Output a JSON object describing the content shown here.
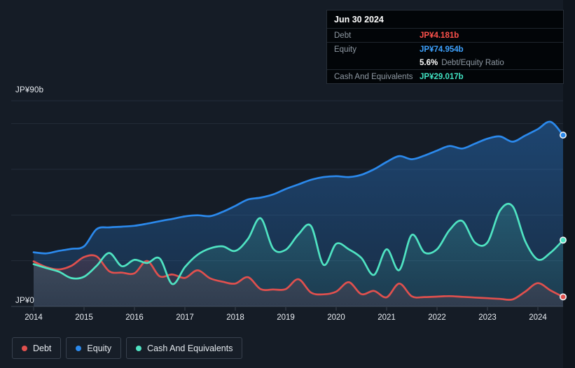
{
  "y_axis": {
    "top_label": "JP¥90b",
    "bottom_label": "JP¥0"
  },
  "x_axis": {
    "years": [
      "2014",
      "2015",
      "2016",
      "2017",
      "2018",
      "2019",
      "2020",
      "2021",
      "2022",
      "2023",
      "2024"
    ]
  },
  "tooltip": {
    "date": "Jun 30 2024",
    "debt_label": "Debt",
    "debt_value": "JP¥4.181b",
    "debt_color": "#ff524c",
    "equity_label": "Equity",
    "equity_value": "JP¥74.954b",
    "equity_color": "#3ea2ff",
    "ratio_value": "5.6%",
    "ratio_label": "Debt/Equity Ratio",
    "cash_label": "Cash And Equivalents",
    "cash_value": "JP¥29.017b",
    "cash_color": "#41e2c2"
  },
  "legend": {
    "items": [
      {
        "label": "Debt",
        "color": "#e0504e"
      },
      {
        "label": "Equity",
        "color": "#2b89ec"
      },
      {
        "label": "Cash And Equivalents",
        "color": "#4fe3c2"
      }
    ]
  },
  "chart_data": {
    "type": "area",
    "title": "Debt to Equity History (JP¥ billions)",
    "unit": "JP¥ billions",
    "xlabel": "",
    "ylabel": "",
    "ylim": [
      0,
      90
    ],
    "x_range": [
      2014,
      2024.5
    ],
    "grid": true,
    "y_gridline_values_b": [
      90,
      80,
      60,
      40,
      20,
      0
    ],
    "x_tick_years": [
      2014,
      2015,
      2016,
      2017,
      2018,
      2019,
      2020,
      2021,
      2022,
      2023,
      2024
    ],
    "legend_position": "bottom-left",
    "x": [
      2014.0,
      2014.25,
      2014.5,
      2014.75,
      2015.0,
      2015.25,
      2015.5,
      2015.75,
      2016.0,
      2016.25,
      2016.5,
      2016.75,
      2017.0,
      2017.25,
      2017.5,
      2017.75,
      2018.0,
      2018.25,
      2018.5,
      2018.75,
      2019.0,
      2019.25,
      2019.5,
      2019.75,
      2020.0,
      2020.25,
      2020.5,
      2020.75,
      2021.0,
      2021.25,
      2021.5,
      2021.75,
      2022.0,
      2022.25,
      2022.5,
      2022.75,
      2023.0,
      2023.25,
      2023.5,
      2023.75,
      2024.0,
      2024.25,
      2024.5
    ],
    "series": [
      {
        "name": "Equity",
        "color": "#2b89ec",
        "values": [
          23.7,
          23.2,
          24.3,
          25.2,
          26.3,
          33.8,
          34.6,
          34.9,
          35.3,
          36.2,
          37.3,
          38.3,
          39.4,
          39.9,
          39.5,
          41.4,
          44.0,
          46.8,
          47.6,
          49.0,
          51.4,
          53.4,
          55.4,
          56.6,
          57.0,
          56.6,
          57.6,
          60.0,
          63.2,
          65.8,
          64.4,
          66.0,
          68.2,
          70.2,
          69.1,
          71.2,
          73.4,
          74.4,
          72.1,
          74.8,
          77.6,
          80.8,
          74.954
        ]
      },
      {
        "name": "Cash And Equivalents",
        "color": "#4fe3c2",
        "values": [
          18.5,
          16.8,
          15.2,
          12.4,
          13.0,
          17.8,
          23.4,
          17.6,
          20.4,
          19.0,
          21.0,
          9.8,
          17.2,
          22.6,
          25.4,
          26.3,
          24.3,
          29.5,
          38.6,
          25.3,
          24.8,
          31.5,
          35.2,
          18.2,
          27.4,
          25.0,
          21.2,
          13.8,
          25.0,
          15.9,
          31.3,
          23.6,
          25.0,
          33.5,
          37.4,
          28.0,
          28.0,
          42.0,
          43.8,
          28.5,
          20.5,
          23.5,
          29.017
        ]
      },
      {
        "name": "Debt",
        "color": "#e0504e",
        "values": [
          19.7,
          17.2,
          16.2,
          17.8,
          21.6,
          21.9,
          15.4,
          14.8,
          14.5,
          19.9,
          13.2,
          14.0,
          12.5,
          15.8,
          12.3,
          10.8,
          10.0,
          12.8,
          7.6,
          7.4,
          7.6,
          11.9,
          6.1,
          5.3,
          6.5,
          10.6,
          5.4,
          6.8,
          4.0,
          10.0,
          4.4,
          4.1,
          4.3,
          4.5,
          4.2,
          3.9,
          3.6,
          3.3,
          3.1,
          6.5,
          10.2,
          7.0,
          4.181
        ]
      }
    ],
    "end_point_values": {
      "date": "Jun 30 2024",
      "debt": 4.181,
      "equity": 74.954,
      "cash": 29.017,
      "debt_equity_ratio_pct": 5.6
    }
  }
}
